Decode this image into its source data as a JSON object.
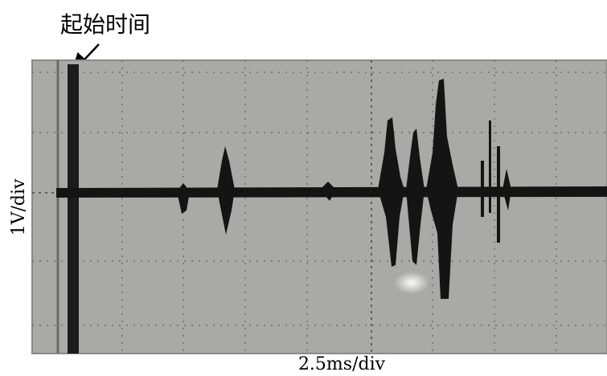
{
  "annotation": "起始时间",
  "y_label": "1V/div",
  "x_label": "2.5ms/div"
}
